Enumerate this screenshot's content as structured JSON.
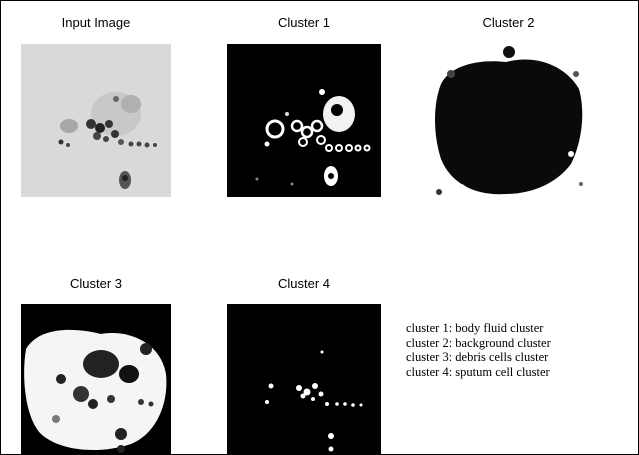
{
  "panels": [
    {
      "title": "Input Image"
    },
    {
      "title": "Cluster 1"
    },
    {
      "title": "Cluster 2"
    },
    {
      "title": "Cluster 3"
    },
    {
      "title": "Cluster 4"
    }
  ],
  "legend": [
    "cluster 1: body fluid cluster",
    "cluster 2: background  cluster",
    "cluster 3: debris cells cluster",
    "cluster 4: sputum cell cluster"
  ]
}
